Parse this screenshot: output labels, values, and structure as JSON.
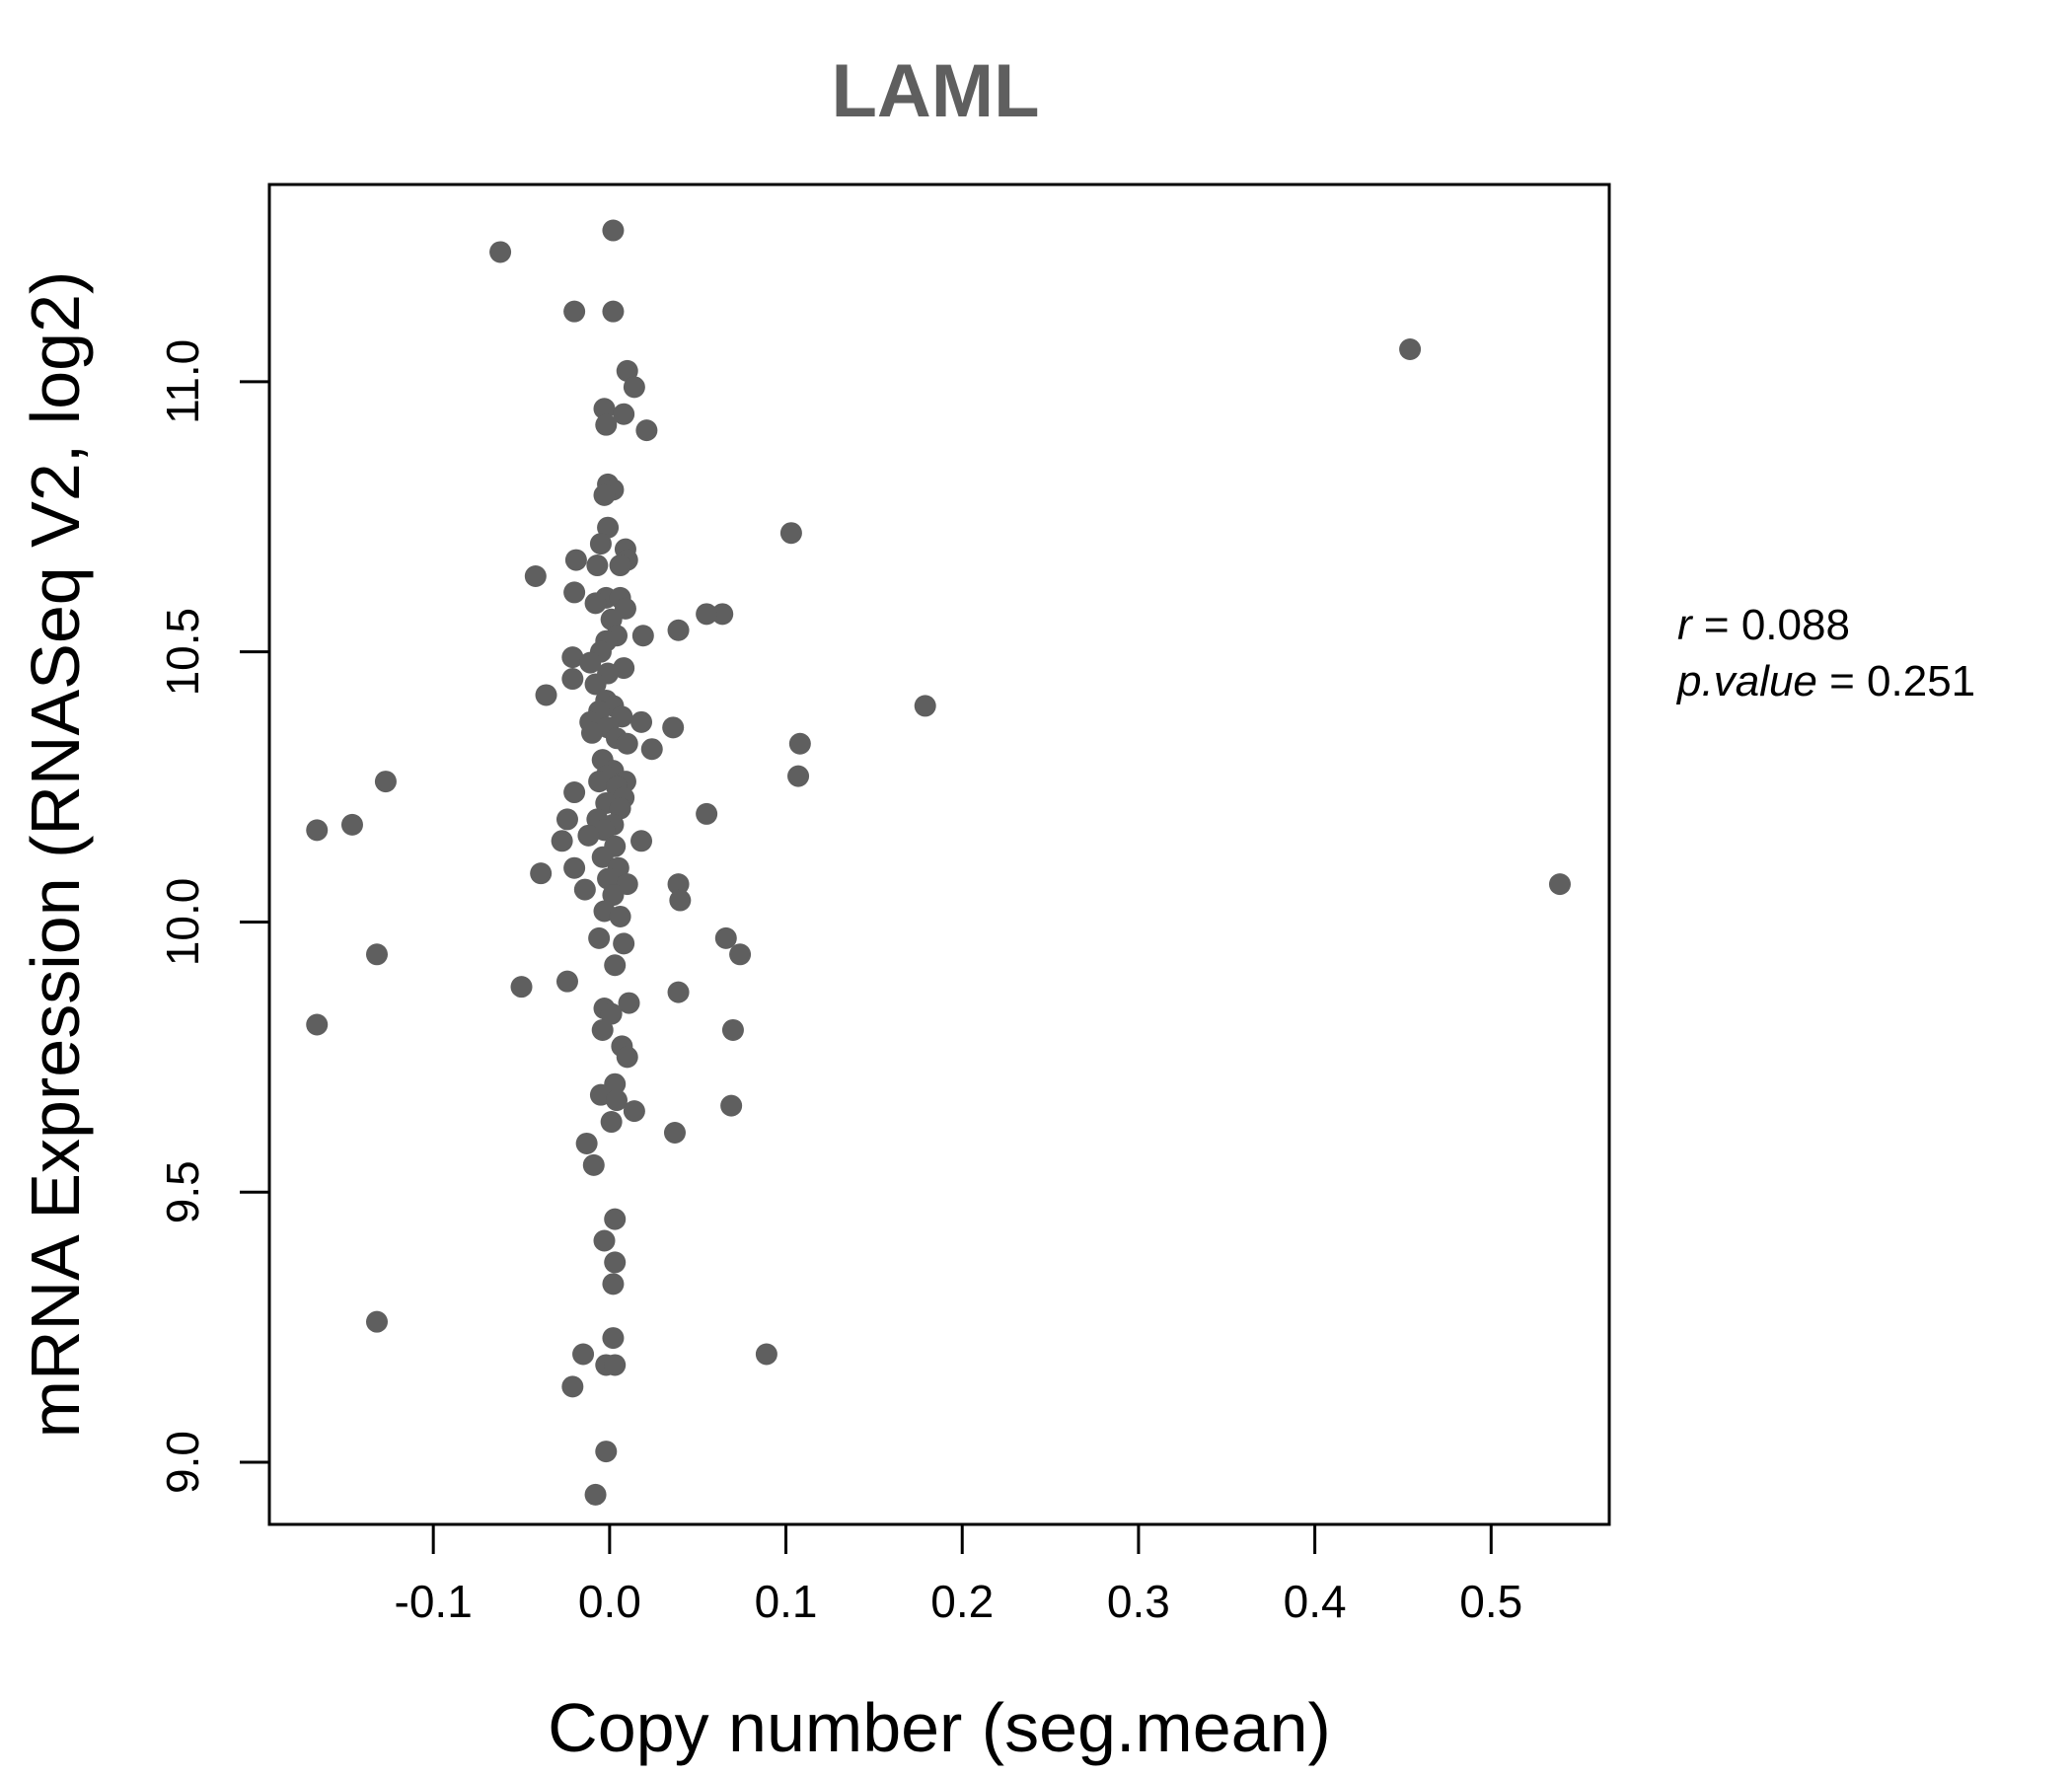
{
  "chart_data": {
    "type": "scatter",
    "title": "LAML",
    "xlabel": "Copy number (seg.mean)",
    "ylabel": "mRNA Expression (RNASeq V2, log2)",
    "xlim": [
      -0.193,
      0.567
    ],
    "ylim": [
      8.885,
      11.365
    ],
    "x_ticks": [
      -0.1,
      0.0,
      0.1,
      0.2,
      0.3,
      0.4,
      0.5
    ],
    "x_tick_labels": [
      "-0.1",
      "0.0",
      "0.1",
      "0.2",
      "0.3",
      "0.4",
      "0.5"
    ],
    "y_ticks": [
      9.0,
      9.5,
      10.0,
      10.5,
      11.0
    ],
    "y_tick_labels": [
      "9.0",
      "9.5",
      "10.0",
      "10.5",
      "11.0"
    ],
    "marker_color": "#5f5f5f",
    "grid": false,
    "legend": "none",
    "annotation": {
      "r_label": "r",
      "r_value": "0.088",
      "p_label": "p.value",
      "p_value": "0.251"
    },
    "points": [
      {
        "x": 0.002,
        "y": 11.28
      },
      {
        "x": -0.062,
        "y": 11.24
      },
      {
        "x": -0.02,
        "y": 11.13
      },
      {
        "x": 0.002,
        "y": 11.13
      },
      {
        "x": 0.454,
        "y": 11.06
      },
      {
        "x": 0.01,
        "y": 11.02
      },
      {
        "x": 0.014,
        "y": 10.99
      },
      {
        "x": -0.003,
        "y": 10.95
      },
      {
        "x": 0.008,
        "y": 10.94
      },
      {
        "x": -0.002,
        "y": 10.92
      },
      {
        "x": 0.021,
        "y": 10.91
      },
      {
        "x": -0.001,
        "y": 10.81
      },
      {
        "x": 0.002,
        "y": 10.8
      },
      {
        "x": -0.003,
        "y": 10.79
      },
      {
        "x": 0.103,
        "y": 10.72
      },
      {
        "x": -0.001,
        "y": 10.73
      },
      {
        "x": -0.005,
        "y": 10.7
      },
      {
        "x": 0.009,
        "y": 10.69
      },
      {
        "x": 0.01,
        "y": 10.67
      },
      {
        "x": -0.019,
        "y": 10.67
      },
      {
        "x": -0.007,
        "y": 10.66
      },
      {
        "x": 0.006,
        "y": 10.66
      },
      {
        "x": -0.042,
        "y": 10.64
      },
      {
        "x": -0.02,
        "y": 10.61
      },
      {
        "x": -0.002,
        "y": 10.6
      },
      {
        "x": 0.006,
        "y": 10.6
      },
      {
        "x": -0.008,
        "y": 10.59
      },
      {
        "x": 0.009,
        "y": 10.58
      },
      {
        "x": 0.064,
        "y": 10.57
      },
      {
        "x": 0.055,
        "y": 10.57
      },
      {
        "x": 0.001,
        "y": 10.56
      },
      {
        "x": 0.039,
        "y": 10.54
      },
      {
        "x": 0.019,
        "y": 10.53
      },
      {
        "x": 0.004,
        "y": 10.53
      },
      {
        "x": -0.002,
        "y": 10.52
      },
      {
        "x": -0.005,
        "y": 10.5
      },
      {
        "x": -0.021,
        "y": 10.49
      },
      {
        "x": -0.011,
        "y": 10.48
      },
      {
        "x": 0.008,
        "y": 10.47
      },
      {
        "x": -0.001,
        "y": 10.46
      },
      {
        "x": -0.021,
        "y": 10.45
      },
      {
        "x": -0.008,
        "y": 10.44
      },
      {
        "x": -0.036,
        "y": 10.42
      },
      {
        "x": -0.002,
        "y": 10.41
      },
      {
        "x": 0.002,
        "y": 10.4
      },
      {
        "x": 0.179,
        "y": 10.4
      },
      {
        "x": -0.006,
        "y": 10.39
      },
      {
        "x": 0.007,
        "y": 10.38
      },
      {
        "x": -0.011,
        "y": 10.37
      },
      {
        "x": 0.018,
        "y": 10.37
      },
      {
        "x": -0.001,
        "y": 10.36
      },
      {
        "x": 0.036,
        "y": 10.36
      },
      {
        "x": -0.01,
        "y": 10.35
      },
      {
        "x": 0.004,
        "y": 10.34
      },
      {
        "x": 0.01,
        "y": 10.33
      },
      {
        "x": 0.108,
        "y": 10.33
      },
      {
        "x": 0.024,
        "y": 10.32
      },
      {
        "x": -0.004,
        "y": 10.3
      },
      {
        "x": 0.002,
        "y": 10.28
      },
      {
        "x": -0.002,
        "y": 10.27
      },
      {
        "x": 0.107,
        "y": 10.27
      },
      {
        "x": -0.127,
        "y": 10.26
      },
      {
        "x": -0.006,
        "y": 10.26
      },
      {
        "x": 0.009,
        "y": 10.26
      },
      {
        "x": 0.004,
        "y": 10.25
      },
      {
        "x": -0.02,
        "y": 10.24
      },
      {
        "x": 0.008,
        "y": 10.23
      },
      {
        "x": -0.002,
        "y": 10.22
      },
      {
        "x": 0.006,
        "y": 10.21
      },
      {
        "x": 0.055,
        "y": 10.2
      },
      {
        "x": -0.024,
        "y": 10.19
      },
      {
        "x": -0.007,
        "y": 10.19
      },
      {
        "x": 0.002,
        "y": 10.18
      },
      {
        "x": -0.146,
        "y": 10.18
      },
      {
        "x": -0.166,
        "y": 10.17
      },
      {
        "x": -0.003,
        "y": 10.17
      },
      {
        "x": -0.012,
        "y": 10.16
      },
      {
        "x": -0.027,
        "y": 10.15
      },
      {
        "x": 0.018,
        "y": 10.15
      },
      {
        "x": 0.003,
        "y": 10.14
      },
      {
        "x": -0.004,
        "y": 10.12
      },
      {
        "x": -0.02,
        "y": 10.1
      },
      {
        "x": 0.005,
        "y": 10.1
      },
      {
        "x": -0.039,
        "y": 10.09
      },
      {
        "x": -0.001,
        "y": 10.08
      },
      {
        "x": 0.01,
        "y": 10.07
      },
      {
        "x": 0.039,
        "y": 10.07
      },
      {
        "x": 0.539,
        "y": 10.07
      },
      {
        "x": -0.014,
        "y": 10.06
      },
      {
        "x": 0.002,
        "y": 10.05
      },
      {
        "x": 0.04,
        "y": 10.04
      },
      {
        "x": -0.003,
        "y": 10.02
      },
      {
        "x": 0.006,
        "y": 10.01
      },
      {
        "x": -0.006,
        "y": 9.97
      },
      {
        "x": 0.066,
        "y": 9.97
      },
      {
        "x": 0.008,
        "y": 9.96
      },
      {
        "x": -0.132,
        "y": 9.94
      },
      {
        "x": 0.074,
        "y": 9.94
      },
      {
        "x": 0.003,
        "y": 9.92
      },
      {
        "x": -0.024,
        "y": 9.89
      },
      {
        "x": -0.05,
        "y": 9.88
      },
      {
        "x": 0.039,
        "y": 9.87
      },
      {
        "x": 0.011,
        "y": 9.85
      },
      {
        "x": -0.003,
        "y": 9.84
      },
      {
        "x": 0.001,
        "y": 9.83
      },
      {
        "x": -0.166,
        "y": 9.81
      },
      {
        "x": -0.004,
        "y": 9.8
      },
      {
        "x": 0.07,
        "y": 9.8
      },
      {
        "x": 0.007,
        "y": 9.77
      },
      {
        "x": 0.01,
        "y": 9.75
      },
      {
        "x": 0.003,
        "y": 9.7
      },
      {
        "x": -0.005,
        "y": 9.68
      },
      {
        "x": 0.004,
        "y": 9.67
      },
      {
        "x": 0.069,
        "y": 9.66
      },
      {
        "x": 0.014,
        "y": 9.65
      },
      {
        "x": 0.001,
        "y": 9.63
      },
      {
        "x": 0.037,
        "y": 9.61
      },
      {
        "x": -0.013,
        "y": 9.59
      },
      {
        "x": -0.009,
        "y": 9.55
      },
      {
        "x": 0.003,
        "y": 9.45
      },
      {
        "x": -0.003,
        "y": 9.41
      },
      {
        "x": 0.003,
        "y": 9.37
      },
      {
        "x": 0.002,
        "y": 9.33
      },
      {
        "x": -0.132,
        "y": 9.26
      },
      {
        "x": 0.002,
        "y": 9.23
      },
      {
        "x": 0.089,
        "y": 9.2
      },
      {
        "x": -0.015,
        "y": 9.2
      },
      {
        "x": -0.002,
        "y": 9.18
      },
      {
        "x": 0.003,
        "y": 9.18
      },
      {
        "x": -0.021,
        "y": 9.14
      },
      {
        "x": -0.002,
        "y": 9.02
      },
      {
        "x": -0.008,
        "y": 8.94
      }
    ]
  }
}
